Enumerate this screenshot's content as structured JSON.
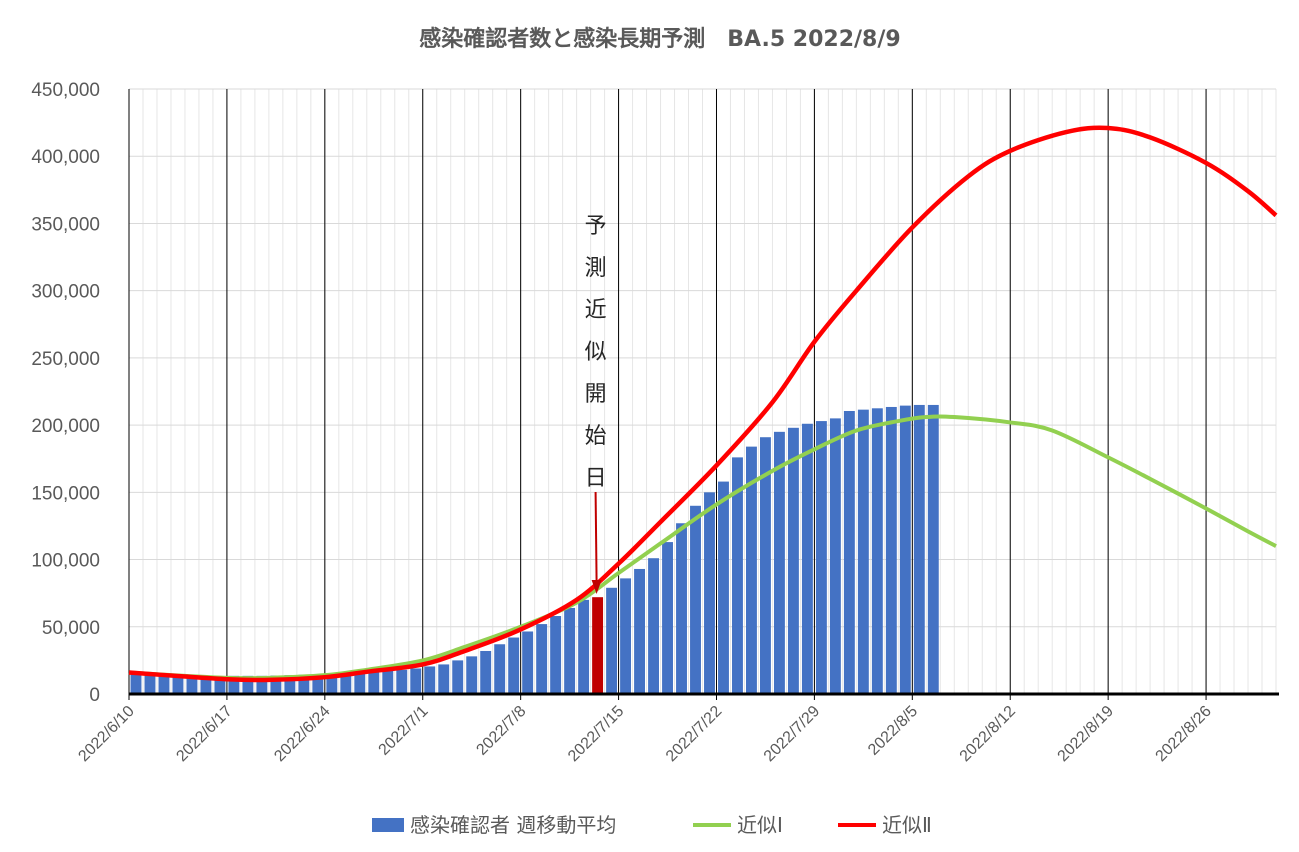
{
  "chart_data": {
    "type": "bar+line",
    "title": "感染確認者数と感染長期予測　BA.5  2022/8/9",
    "ylim": [
      0,
      450000
    ],
    "yticks": [
      "0",
      "50,000",
      "100,000",
      "150,000",
      "200,000",
      "250,000",
      "300,000",
      "350,000",
      "400,000",
      "450,000"
    ],
    "ytick_values": [
      0,
      50000,
      100000,
      150000,
      200000,
      250000,
      300000,
      350000,
      400000,
      450000
    ],
    "x_start": "2022/6/10",
    "x_end": "2022/8/31",
    "xticks": [
      "2022/6/10",
      "2022/6/17",
      "2022/6/24",
      "2022/7/1",
      "2022/7/8",
      "2022/7/15",
      "2022/7/22",
      "2022/7/29",
      "2022/8/5",
      "2022/8/12",
      "2022/8/19",
      "2022/8/26"
    ],
    "grid": "vertical",
    "legend_position": "bottom",
    "annotation": {
      "text": [
        "予",
        "測",
        "近",
        "似",
        "開",
        "始",
        "日"
      ],
      "date": "2022/7/13"
    },
    "series": [
      {
        "name": "感染確認者 週移動平均",
        "kind": "bar",
        "color": "#4472C4",
        "highlight_date": "2022/7/13",
        "highlight_color": "#C00000",
        "x": [
          "2022/6/10",
          "2022/6/11",
          "2022/6/12",
          "2022/6/13",
          "2022/6/14",
          "2022/6/15",
          "2022/6/16",
          "2022/6/17",
          "2022/6/18",
          "2022/6/19",
          "2022/6/20",
          "2022/6/21",
          "2022/6/22",
          "2022/6/23",
          "2022/6/24",
          "2022/6/25",
          "2022/6/26",
          "2022/6/27",
          "2022/6/28",
          "2022/6/29",
          "2022/6/30",
          "2022/7/1",
          "2022/7/2",
          "2022/7/3",
          "2022/7/4",
          "2022/7/5",
          "2022/7/6",
          "2022/7/7",
          "2022/7/8",
          "2022/7/9",
          "2022/7/10",
          "2022/7/11",
          "2022/7/12",
          "2022/7/13",
          "2022/7/14",
          "2022/7/15",
          "2022/7/16",
          "2022/7/17",
          "2022/7/18",
          "2022/7/19",
          "2022/7/20",
          "2022/7/21",
          "2022/7/22",
          "2022/7/23",
          "2022/7/24",
          "2022/7/25",
          "2022/7/26",
          "2022/7/27",
          "2022/7/28",
          "2022/7/29",
          "2022/7/30",
          "2022/7/31",
          "2022/8/1",
          "2022/8/2",
          "2022/8/3",
          "2022/8/4",
          "2022/8/5",
          "2022/8/6",
          "2022/8/7",
          "2022/8/8"
        ],
        "values": [
          16000,
          14500,
          13500,
          13000,
          12500,
          12500,
          13000,
          13500,
          13500,
          13500,
          13700,
          14000,
          14300,
          14600,
          15000,
          15500,
          16000,
          16800,
          17500,
          18000,
          19000,
          20500,
          22000,
          25000,
          28000,
          32000,
          37000,
          42000,
          46500,
          52000,
          58000,
          64000,
          70000,
          72000,
          79000,
          86000,
          93000,
          101000,
          113000,
          127000,
          140000,
          150000,
          158000,
          176000,
          184000,
          191000,
          195000,
          198000,
          201000,
          203000,
          205000,
          210500,
          211500,
          212500,
          213500,
          214500,
          215000,
          215000,
          0,
          0
        ]
      },
      {
        "name": "近似Ⅰ",
        "kind": "line",
        "color": "#92D050",
        "x": [
          "2022/6/10",
          "2022/6/14",
          "2022/6/17",
          "2022/6/20",
          "2022/6/24",
          "2022/6/27",
          "2022/7/1",
          "2022/7/4",
          "2022/7/8",
          "2022/7/12",
          "2022/7/15",
          "2022/7/18",
          "2022/7/22",
          "2022/7/26",
          "2022/7/29",
          "2022/8/1",
          "2022/8/4",
          "2022/8/6",
          "2022/8/8",
          "2022/8/12",
          "2022/8/15",
          "2022/8/19",
          "2022/8/22",
          "2022/8/26",
          "2022/8/29",
          "2022/8/31"
        ],
        "values": [
          16000,
          13500,
          12000,
          12000,
          14000,
          18000,
          25000,
          35000,
          50000,
          68000,
          90000,
          112000,
          141000,
          166000,
          182000,
          196000,
          203000,
          206000,
          206000,
          202000,
          196000,
          176000,
          160000,
          138000,
          121000,
          110000
        ]
      },
      {
        "name": "近似Ⅱ",
        "kind": "line",
        "color": "#FF0000",
        "x": [
          "2022/6/10",
          "2022/6/14",
          "2022/6/17",
          "2022/6/20",
          "2022/6/24",
          "2022/6/27",
          "2022/7/1",
          "2022/7/4",
          "2022/7/8",
          "2022/7/12",
          "2022/7/15",
          "2022/7/18",
          "2022/7/22",
          "2022/7/26",
          "2022/7/29",
          "2022/8/1",
          "2022/8/5",
          "2022/8/9",
          "2022/8/12",
          "2022/8/16",
          "2022/8/19",
          "2022/8/22",
          "2022/8/26",
          "2022/8/29",
          "2022/8/31"
        ],
        "values": [
          16000,
          13000,
          11000,
          10500,
          12500,
          16500,
          22000,
          32000,
          48000,
          70000,
          97000,
          128000,
          170000,
          217000,
          262000,
          300000,
          347000,
          385000,
          404000,
          418000,
          421000,
          414000,
          395000,
          374000,
          356000
        ]
      }
    ]
  }
}
